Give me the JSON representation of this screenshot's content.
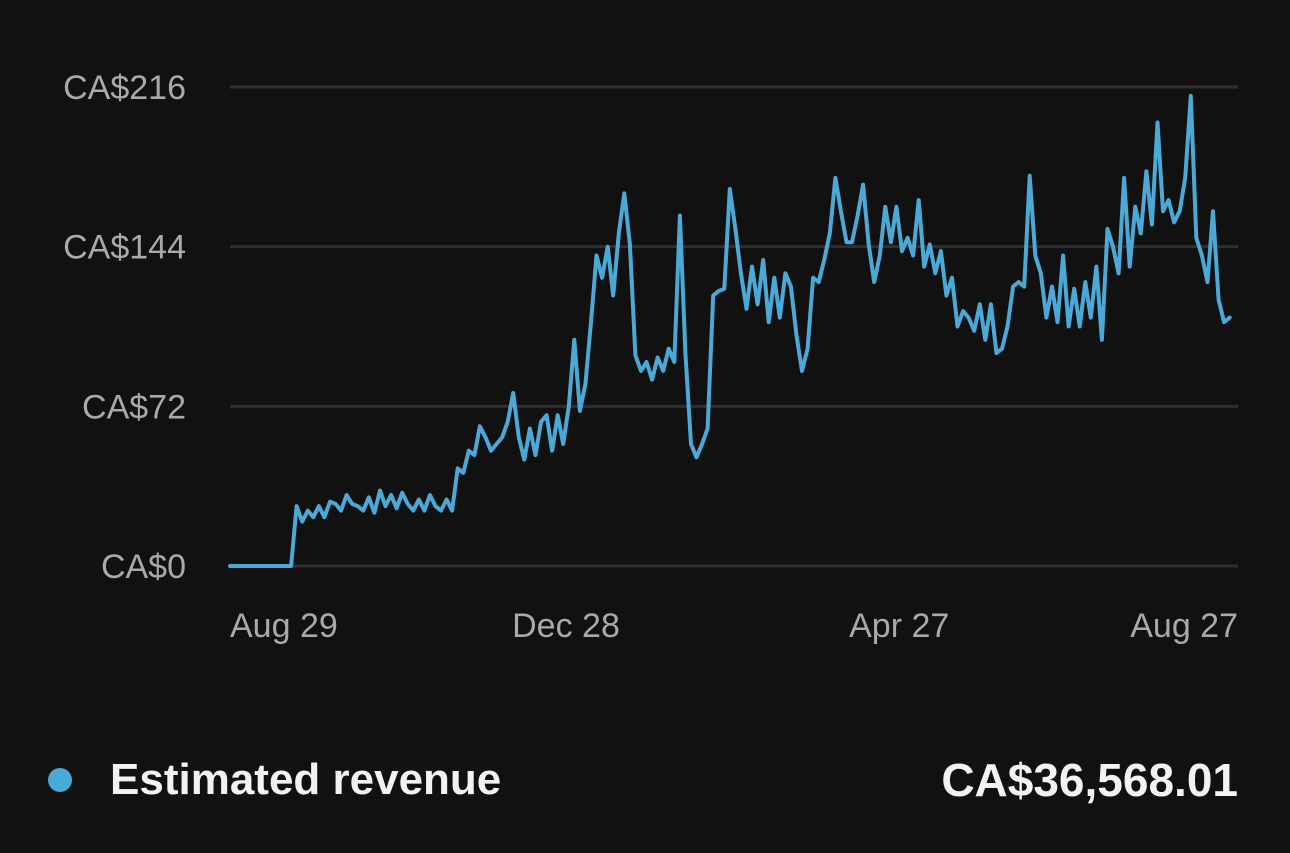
{
  "colors": {
    "background": "#111112",
    "grid": "#2f2f31",
    "tick_text": "#a8a8ad",
    "series": "#4aa9d6",
    "legend_text": "#f2f2f2"
  },
  "legend": {
    "label": "Estimated revenue",
    "total": "CA$36,568.01",
    "dot_color": "#4aa9d6"
  },
  "chart_data": {
    "type": "line",
    "title": "",
    "xlabel": "",
    "ylabel": "",
    "ylim": [
      0,
      216
    ],
    "y_ticks": [
      {
        "value": 0,
        "label": "CA$0"
      },
      {
        "value": 72,
        "label": "CA$72"
      },
      {
        "value": 144,
        "label": "CA$144"
      },
      {
        "value": 216,
        "label": "CA$216"
      }
    ],
    "x_tick_labels": [
      {
        "day": 0,
        "label": "Aug 29"
      },
      {
        "day": 121,
        "label": "Dec 28"
      },
      {
        "day": 241,
        "label": "Apr 27"
      },
      {
        "day": 363,
        "label": "Aug 27"
      }
    ],
    "series": [
      {
        "name": "Estimated revenue",
        "x_unit": "days since Aug 29",
        "points": [
          [
            0,
            0
          ],
          [
            6,
            0
          ],
          [
            12,
            0
          ],
          [
            18,
            0
          ],
          [
            22,
            0
          ],
          [
            24,
            27
          ],
          [
            26,
            20
          ],
          [
            28,
            25
          ],
          [
            30,
            22
          ],
          [
            32,
            27
          ],
          [
            34,
            22
          ],
          [
            36,
            29
          ],
          [
            38,
            28
          ],
          [
            40,
            25
          ],
          [
            42,
            32
          ],
          [
            44,
            28
          ],
          [
            46,
            27
          ],
          [
            48,
            25
          ],
          [
            50,
            31
          ],
          [
            52,
            24
          ],
          [
            54,
            34
          ],
          [
            56,
            27
          ],
          [
            58,
            32
          ],
          [
            60,
            26
          ],
          [
            62,
            33
          ],
          [
            64,
            28
          ],
          [
            66,
            25
          ],
          [
            68,
            30
          ],
          [
            70,
            25
          ],
          [
            72,
            32
          ],
          [
            74,
            27
          ],
          [
            76,
            25
          ],
          [
            78,
            30
          ],
          [
            80,
            25
          ],
          [
            82,
            44
          ],
          [
            84,
            42
          ],
          [
            86,
            52
          ],
          [
            88,
            50
          ],
          [
            90,
            63
          ],
          [
            92,
            58
          ],
          [
            94,
            52
          ],
          [
            96,
            55
          ],
          [
            98,
            58
          ],
          [
            100,
            65
          ],
          [
            102,
            78
          ],
          [
            104,
            58
          ],
          [
            106,
            48
          ],
          [
            108,
            62
          ],
          [
            110,
            50
          ],
          [
            112,
            65
          ],
          [
            114,
            68
          ],
          [
            116,
            52
          ],
          [
            118,
            68
          ],
          [
            120,
            55
          ],
          [
            122,
            72
          ],
          [
            124,
            102
          ],
          [
            126,
            70
          ],
          [
            128,
            82
          ],
          [
            130,
            110
          ],
          [
            132,
            140
          ],
          [
            134,
            130
          ],
          [
            136,
            144
          ],
          [
            138,
            122
          ],
          [
            140,
            150
          ],
          [
            142,
            168
          ],
          [
            144,
            145
          ],
          [
            146,
            95
          ],
          [
            148,
            88
          ],
          [
            150,
            92
          ],
          [
            152,
            84
          ],
          [
            154,
            94
          ],
          [
            156,
            88
          ],
          [
            158,
            98
          ],
          [
            160,
            92
          ],
          [
            162,
            158
          ],
          [
            164,
            96
          ],
          [
            166,
            55
          ],
          [
            168,
            49
          ],
          [
            170,
            55
          ],
          [
            172,
            62
          ],
          [
            174,
            122
          ],
          [
            176,
            124
          ],
          [
            178,
            125
          ],
          [
            180,
            170
          ],
          [
            182,
            152
          ],
          [
            184,
            132
          ],
          [
            186,
            116
          ],
          [
            188,
            135
          ],
          [
            190,
            118
          ],
          [
            192,
            138
          ],
          [
            194,
            110
          ],
          [
            196,
            130
          ],
          [
            198,
            112
          ],
          [
            200,
            132
          ],
          [
            202,
            126
          ],
          [
            204,
            104
          ],
          [
            206,
            88
          ],
          [
            208,
            98
          ],
          [
            210,
            130
          ],
          [
            212,
            128
          ],
          [
            214,
            138
          ],
          [
            216,
            150
          ],
          [
            218,
            175
          ],
          [
            220,
            160
          ],
          [
            222,
            146
          ],
          [
            224,
            146
          ],
          [
            226,
            158
          ],
          [
            228,
            172
          ],
          [
            230,
            145
          ],
          [
            232,
            128
          ],
          [
            234,
            140
          ],
          [
            236,
            162
          ],
          [
            238,
            146
          ],
          [
            240,
            162
          ],
          [
            242,
            142
          ],
          [
            244,
            148
          ],
          [
            246,
            140
          ],
          [
            248,
            165
          ],
          [
            250,
            135
          ],
          [
            252,
            145
          ],
          [
            254,
            132
          ],
          [
            256,
            142
          ],
          [
            258,
            122
          ],
          [
            260,
            130
          ],
          [
            262,
            108
          ],
          [
            264,
            115
          ],
          [
            266,
            112
          ],
          [
            268,
            106
          ],
          [
            270,
            118
          ],
          [
            272,
            102
          ],
          [
            274,
            118
          ],
          [
            276,
            96
          ],
          [
            278,
            98
          ],
          [
            280,
            108
          ],
          [
            282,
            126
          ],
          [
            284,
            128
          ],
          [
            286,
            126
          ],
          [
            288,
            176
          ],
          [
            290,
            140
          ],
          [
            292,
            132
          ],
          [
            294,
            112
          ],
          [
            296,
            126
          ],
          [
            298,
            110
          ],
          [
            300,
            140
          ],
          [
            302,
            108
          ],
          [
            304,
            125
          ],
          [
            306,
            108
          ],
          [
            308,
            128
          ],
          [
            310,
            112
          ],
          [
            312,
            135
          ],
          [
            314,
            102
          ],
          [
            316,
            152
          ],
          [
            318,
            144
          ],
          [
            320,
            132
          ],
          [
            322,
            175
          ],
          [
            324,
            135
          ],
          [
            326,
            162
          ],
          [
            328,
            150
          ],
          [
            330,
            178
          ],
          [
            332,
            154
          ],
          [
            334,
            200
          ],
          [
            336,
            160
          ],
          [
            338,
            165
          ],
          [
            340,
            155
          ],
          [
            342,
            160
          ],
          [
            344,
            175
          ],
          [
            346,
            212
          ],
          [
            348,
            148
          ],
          [
            350,
            140
          ],
          [
            352,
            128
          ],
          [
            354,
            160
          ],
          [
            356,
            120
          ],
          [
            358,
            110
          ],
          [
            360,
            112
          ]
        ]
      }
    ]
  }
}
